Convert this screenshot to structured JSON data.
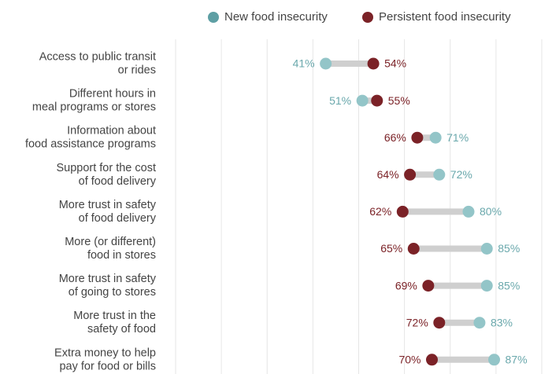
{
  "chart_data": {
    "type": "dumbbell",
    "categories": [
      "Access to public transit\nor rides",
      "Different hours in\nmeal programs or stores",
      "Information about\nfood assistance programs",
      "Support for the cost\nof food delivery",
      "More trust in safety\nof food delivery",
      "More (or different)\nfood in stores",
      "More trust in safety\nof going to stores",
      "More trust in the\nsafety of food",
      "Extra money to help\npay for food or bills"
    ],
    "series": [
      {
        "name": "New food insecurity",
        "color": "#93c5c8",
        "label_color": "#6aa8ac",
        "legend_color": "#5e9fa4",
        "values": [
          41,
          51,
          71,
          72,
          80,
          85,
          85,
          83,
          87
        ],
        "value_labels": [
          "41%",
          "51%",
          "71%",
          "72%",
          "80%",
          "85%",
          "85%",
          "83%",
          "87%"
        ]
      },
      {
        "name": "Persistent food insecurity",
        "color": "#7b2227",
        "label_color": "#7b2227",
        "legend_color": "#7b2227",
        "values": [
          54,
          55,
          66,
          64,
          62,
          65,
          69,
          72,
          70
        ],
        "value_labels": [
          "54%",
          "55%",
          "66%",
          "64%",
          "62%",
          "65%",
          "69%",
          "72%",
          "70%"
        ]
      }
    ],
    "xlim": [
      0,
      100
    ],
    "xticks": [
      0,
      12.5,
      25,
      37.5,
      50,
      62.5,
      75,
      87.5,
      100
    ],
    "grid": true
  }
}
